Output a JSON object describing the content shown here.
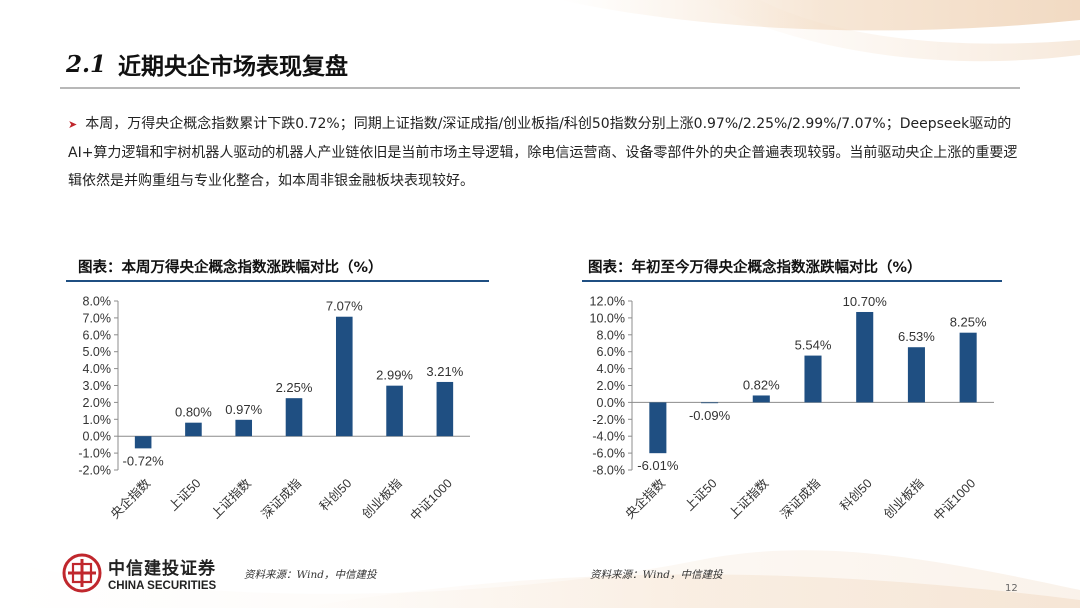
{
  "header": {
    "section_number": "2.1",
    "section_title": "近期央企市场表现复盘"
  },
  "bullet": {
    "text": "本周，万得央企概念指数累计下跌0.72%；同期上证指数/深证成指/创业板指/科创50指数分别上涨0.97%/2.25%/2.99%/7.07%；Deepseek驱动的AI+算力逻辑和宇树机器人驱动的机器人产业链依旧是当前市场主导逻辑，除电信运营商、设备零部件外的央企普遍表现较弱。当前驱动央企上涨的重要逻辑依然是并购重组与专业化整合，如本周非银金融板块表现较好。"
  },
  "charts": {
    "left": {
      "title": "图表：本周万得央企概念指数涨跌幅对比（%）",
      "source": "资料来源：Wind，中信建投"
    },
    "right": {
      "title": "图表：年初至今万得央企概念指数涨跌幅对比（%）",
      "source": "资料来源：Wind，中信建投"
    }
  },
  "chart_data": [
    {
      "type": "bar",
      "title": "图表：本周万得央企概念指数涨跌幅对比（%）",
      "categories": [
        "央企指数",
        "上证50",
        "上证指数",
        "深证成指",
        "科创50",
        "创业板指",
        "中证1000"
      ],
      "values": [
        -0.72,
        0.8,
        0.97,
        2.25,
        7.07,
        2.99,
        3.21
      ],
      "value_labels": [
        "-0.72%",
        "0.80%",
        "0.97%",
        "2.25%",
        "7.07%",
        "2.99%",
        "3.21%"
      ],
      "ylim": [
        -2.0,
        8.0
      ],
      "yticks": [
        "8.0%",
        "7.0%",
        "6.0%",
        "5.0%",
        "4.0%",
        "3.0%",
        "2.0%",
        "1.0%",
        "0.0%",
        "-1.0%",
        "-2.0%"
      ],
      "ytick_values": [
        8,
        7,
        6,
        5,
        4,
        3,
        2,
        1,
        0,
        -1,
        -2
      ],
      "xlabel": "",
      "ylabel": "",
      "grid": false,
      "bar_color": "#1f4f82"
    },
    {
      "type": "bar",
      "title": "图表：年初至今万得央企概念指数涨跌幅对比（%）",
      "categories": [
        "央企指数",
        "上证50",
        "上证指数",
        "深证成指",
        "科创50",
        "创业板指",
        "中证1000"
      ],
      "values": [
        -6.01,
        -0.09,
        0.82,
        5.54,
        10.7,
        6.53,
        8.25
      ],
      "value_labels": [
        "-6.01%",
        "-0.09%",
        "0.82%",
        "5.54%",
        "10.70%",
        "6.53%",
        "8.25%"
      ],
      "ylim": [
        -8.0,
        12.0
      ],
      "yticks": [
        "12.0%",
        "10.0%",
        "8.0%",
        "6.0%",
        "4.0%",
        "2.0%",
        "0.0%",
        "-2.0%",
        "-4.0%",
        "-6.0%",
        "-8.0%"
      ],
      "ytick_values": [
        12,
        10,
        8,
        6,
        4,
        2,
        0,
        -2,
        -4,
        -6,
        -8
      ],
      "xlabel": "",
      "ylabel": "",
      "grid": false,
      "bar_color": "#1f4f82"
    }
  ],
  "footer": {
    "logo_cn": "中信建投证券",
    "logo_en": "CHINA SECURITIES",
    "page_number": "12"
  },
  "colors": {
    "bar": "#1f4f82",
    "accent_red": "#c0272d",
    "rule_gray": "#b8b8b8"
  }
}
